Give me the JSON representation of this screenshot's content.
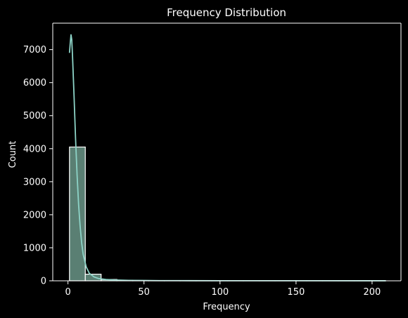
{
  "chart_data": {
    "type": "bar",
    "title": "Frequency Distribution",
    "xlabel": "Frequency",
    "ylabel": "Count",
    "xlim": [
      -10,
      219
    ],
    "ylim": [
      0,
      7800
    ],
    "x_ticks": [
      0,
      50,
      100,
      150,
      200
    ],
    "y_ticks": [
      0,
      1000,
      2000,
      3000,
      4000,
      5000,
      6000,
      7000
    ],
    "grid": false,
    "bins": [
      {
        "start": 1,
        "end": 11.4,
        "count": 4050
      },
      {
        "start": 11.4,
        "end": 21.8,
        "count": 200
      },
      {
        "start": 21.8,
        "end": 32.2,
        "count": 40
      },
      {
        "start": 32.2,
        "end": 42.6,
        "count": 15
      },
      {
        "start": 42.6,
        "end": 53.0,
        "count": 8
      },
      {
        "start": 53.0,
        "end": 63.4,
        "count": 5
      },
      {
        "start": 63.4,
        "end": 73.8,
        "count": 3
      },
      {
        "start": 73.8,
        "end": 84.2,
        "count": 2
      },
      {
        "start": 84.2,
        "end": 94.6,
        "count": 2
      },
      {
        "start": 94.6,
        "end": 105.0,
        "count": 1
      },
      {
        "start": 105.0,
        "end": 115.4,
        "count": 1
      },
      {
        "start": 115.4,
        "end": 125.8,
        "count": 1
      },
      {
        "start": 125.8,
        "end": 136.2,
        "count": 1
      },
      {
        "start": 136.2,
        "end": 146.6,
        "count": 1
      },
      {
        "start": 146.6,
        "end": 157.0,
        "count": 1
      },
      {
        "start": 157.0,
        "end": 167.4,
        "count": 1
      },
      {
        "start": 167.4,
        "end": 177.8,
        "count": 1
      },
      {
        "start": 177.8,
        "end": 188.2,
        "count": 1
      },
      {
        "start": 188.2,
        "end": 198.6,
        "count": 1
      },
      {
        "start": 198.6,
        "end": 209.0,
        "count": 1
      }
    ],
    "kde_curve": {
      "x": [
        1,
        1.5,
        2,
        2.5,
        3,
        4,
        5,
        6,
        7,
        8,
        9,
        10,
        12,
        14,
        17,
        20,
        25,
        30,
        40,
        50,
        60,
        80,
        100,
        150,
        209
      ],
      "y": [
        6900,
        7200,
        7450,
        7300,
        6800,
        5600,
        4300,
        3200,
        2300,
        1650,
        1150,
        800,
        420,
        230,
        120,
        70,
        40,
        25,
        14,
        9,
        6,
        4,
        3,
        2,
        1
      ]
    },
    "colors": {
      "bar_fill": "#5a7f73",
      "bar_edge": "#ffffff",
      "kde_line": "#8dd3c7",
      "background": "#000000",
      "axes": "#ffffff",
      "text": "#ffffff"
    }
  }
}
